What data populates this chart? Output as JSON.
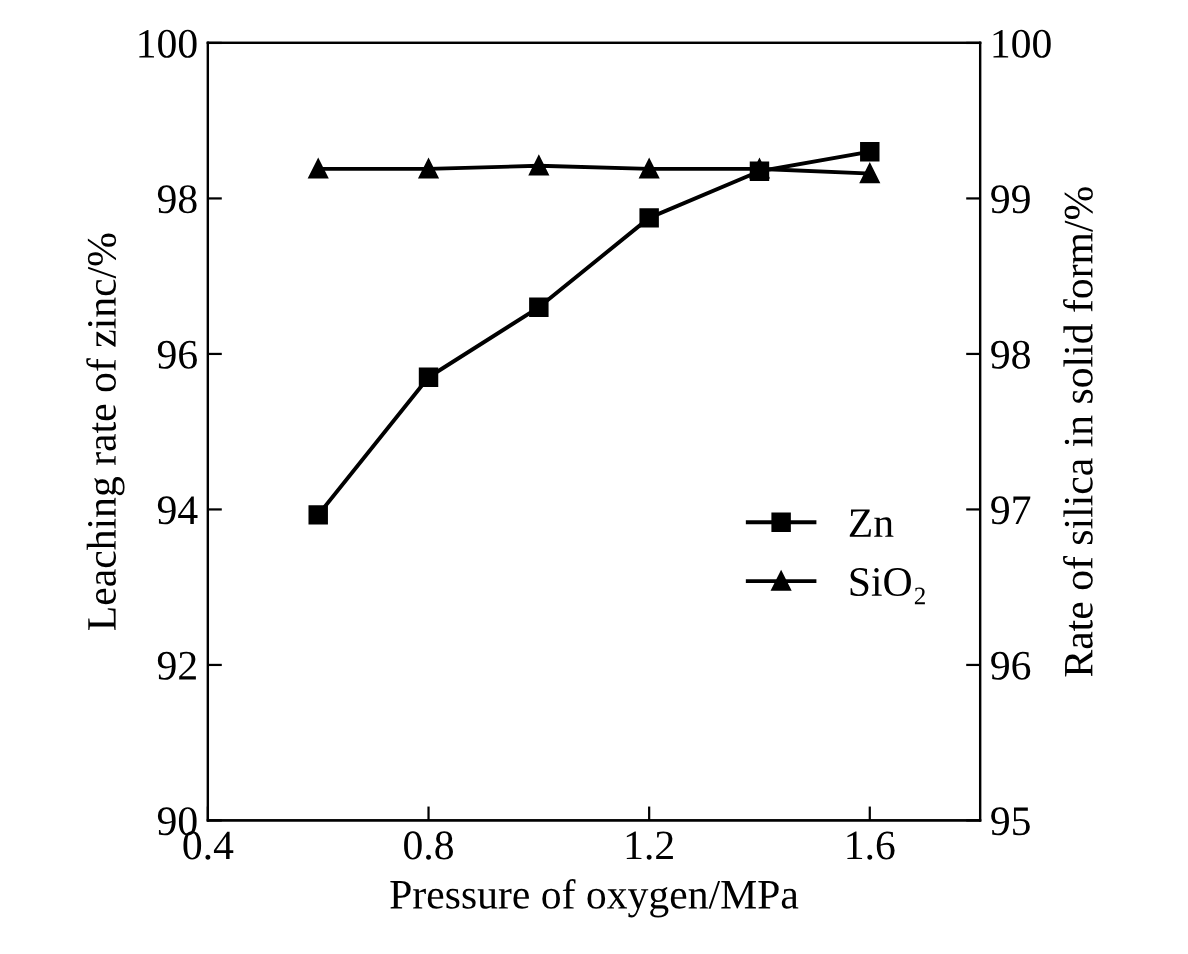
{
  "chart_data": {
    "type": "line",
    "xlabel": "Pressure of oxygen/MPa",
    "ylabel": "Leaching rate of zinc/%",
    "y2label": "Rate of silica in solid form/%",
    "x": [
      0.6,
      0.8,
      1.0,
      1.2,
      1.4,
      1.6
    ],
    "series": [
      {
        "name": "Zn",
        "color": "#000000",
        "marker": "square",
        "values": [
          93.93,
          95.7,
          96.6,
          97.75,
          98.35,
          98.6
        ]
      },
      {
        "name": "SiO₂",
        "color": "#000000",
        "marker": "triangle",
        "axis": "y2",
        "values": [
          99.19,
          99.19,
          99.21,
          99.19,
          99.19,
          99.16
        ]
      }
    ],
    "xlim": [
      0.4,
      1.8
    ],
    "xticks": [
      0.4,
      0.8,
      1.2,
      1.6
    ],
    "ylim": [
      90,
      100
    ],
    "yticks": [
      90,
      92,
      94,
      96,
      98,
      100
    ],
    "y2lim": [
      95,
      100
    ],
    "y2ticks": [
      95,
      96,
      97,
      98,
      99,
      100
    ],
    "line_style": "solid",
    "grid": false,
    "legend": "right"
  }
}
